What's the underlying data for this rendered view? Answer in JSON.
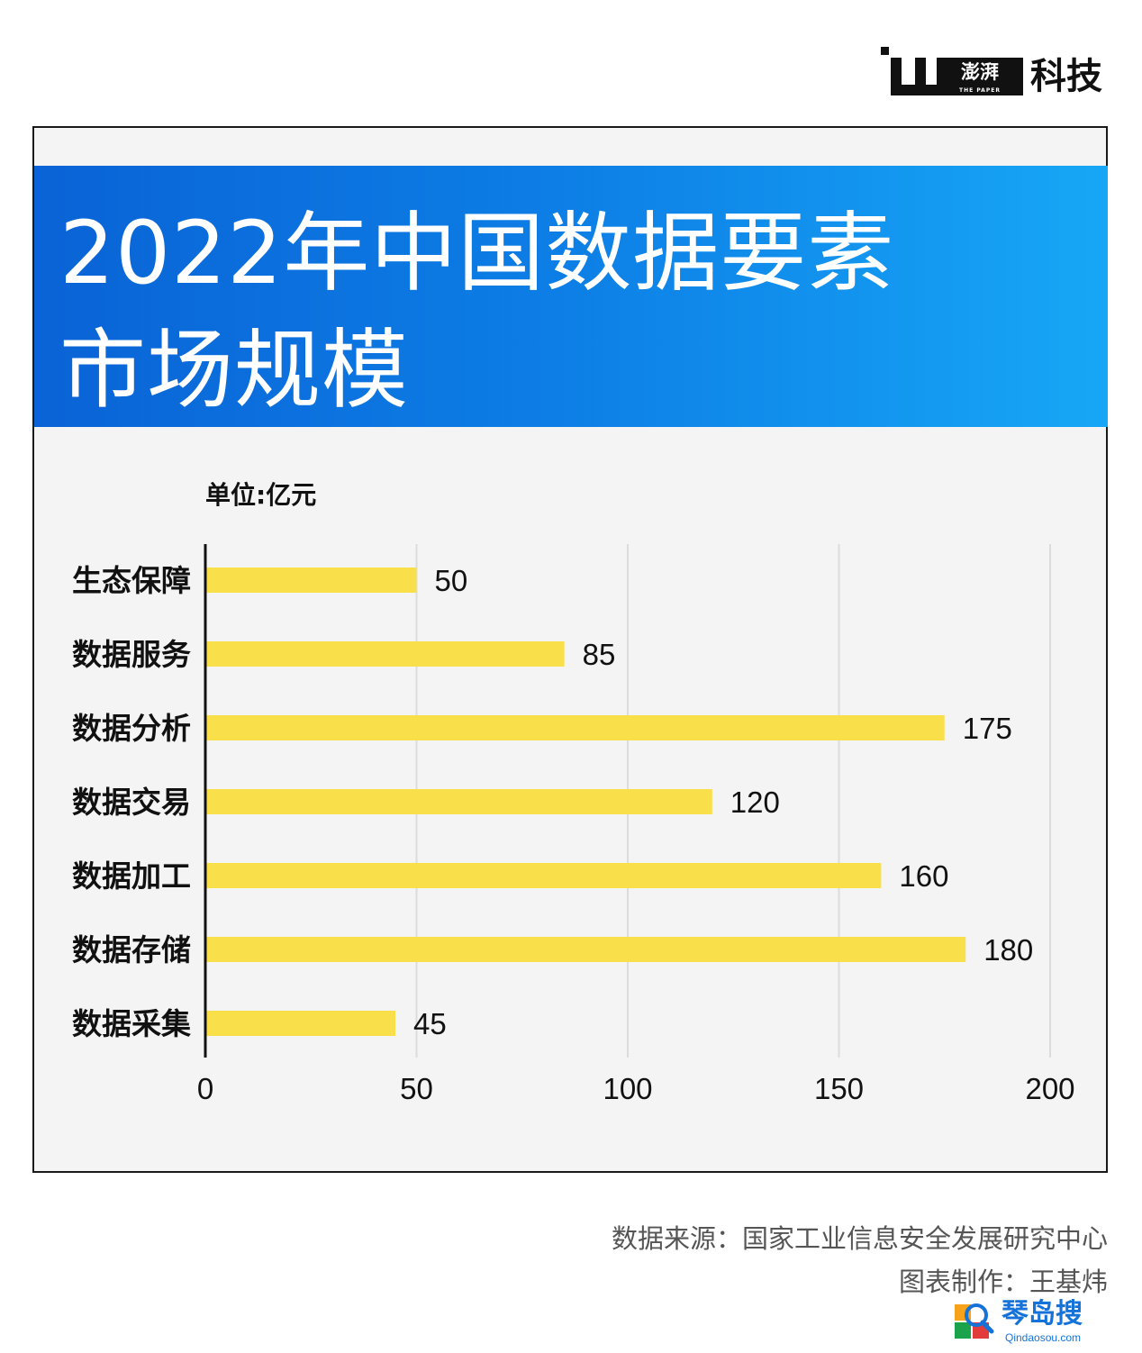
{
  "brand": {
    "emblem_text": "澎湃",
    "tagline": "THE PAPER",
    "name": "科技"
  },
  "title_lines": [
    "2022年中国数据要素",
    "市场规模"
  ],
  "unit_label": "单位:亿元",
  "chart_data": {
    "type": "bar",
    "orientation": "horizontal",
    "categories": [
      "生态保障",
      "数据服务",
      "数据分析",
      "数据交易",
      "数据加工",
      "数据存储",
      "数据采集"
    ],
    "values": [
      50,
      85,
      175,
      120,
      160,
      180,
      45
    ],
    "xlim": [
      0,
      200
    ],
    "xticks": [
      0,
      50,
      100,
      150,
      200
    ],
    "data_labels": true,
    "grid": true,
    "bar_color": "#f9e04b"
  },
  "footer": {
    "source": "数据来源：国家工业信息安全发展研究中心",
    "credit": "图表制作：王基炜"
  },
  "watermark": {
    "text": "琴岛搜",
    "url": "Qindaosou.com"
  },
  "colors": {
    "banner_start": "#0a63d6",
    "banner_end": "#17a7f6",
    "bar": "#f9e04b",
    "plot_bg": "#f4f4f4",
    "gridline": "#dcdcdc"
  }
}
